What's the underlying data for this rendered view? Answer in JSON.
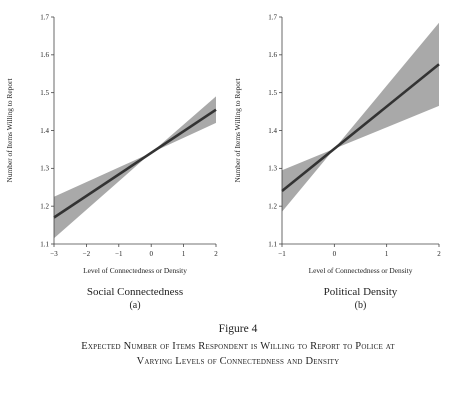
{
  "chart_data": [
    {
      "type": "line",
      "panel": "a",
      "title": "Social Connectedness",
      "subtitle": "(a)",
      "xlabel": "Level of Connectedness or Density",
      "ylabel": "Number of Items Willing to Report",
      "xlim": [
        -3,
        2
      ],
      "ylim": [
        1.1,
        1.7
      ],
      "xticks": [
        -3,
        -2,
        -1,
        0,
        1,
        2
      ],
      "xtick_labels": [
        "−3",
        "−2",
        "−1",
        "0",
        "1",
        "2"
      ],
      "yticks": [
        1.1,
        1.2,
        1.3,
        1.4,
        1.5,
        1.6,
        1.7
      ],
      "ytick_labels": [
        "1.1",
        "1.2",
        "1.3",
        "1.4",
        "1.5",
        "1.6",
        "1.7"
      ],
      "series": [
        {
          "x": [
            -3,
            2
          ],
          "y": [
            1.17,
            1.455
          ],
          "ci_lower": [
            1.115,
            1.42
          ],
          "ci_upper": [
            1.225,
            1.49
          ],
          "ci_pivot_x": 0
        }
      ]
    },
    {
      "type": "line",
      "panel": "b",
      "title": "Political Density",
      "subtitle": "(b)",
      "xlabel": "Level of Connectedness or Density",
      "ylabel": "Number of Items Willing to Report",
      "xlim": [
        -1,
        2
      ],
      "ylim": [
        1.1,
        1.7
      ],
      "xticks": [
        -1,
        0,
        1,
        2
      ],
      "xtick_labels": [
        "−1",
        "0",
        "1",
        "2"
      ],
      "yticks": [
        1.1,
        1.2,
        1.3,
        1.4,
        1.5,
        1.6,
        1.7
      ],
      "ytick_labels": [
        "1.1",
        "1.2",
        "1.3",
        "1.4",
        "1.5",
        "1.6",
        "1.7"
      ],
      "series": [
        {
          "x": [
            -1,
            2
          ],
          "y": [
            1.24,
            1.575
          ],
          "ci_lower": [
            1.185,
            1.465
          ],
          "ci_upper": [
            1.295,
            1.685
          ],
          "ci_pivot_x": 0
        }
      ]
    }
  ],
  "figure": {
    "label": "Figure 4",
    "caption_lines": [
      "Expected Number of Items Respondent is Willing to Report to Police at",
      "Varying Levels of Connectedness and Density"
    ]
  },
  "colors": {
    "line": "#333333",
    "band": "#a9a9a9",
    "axis": "#444444",
    "text": "#222222"
  }
}
